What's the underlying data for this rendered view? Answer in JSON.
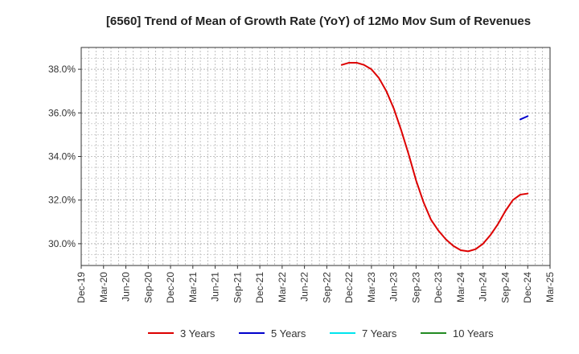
{
  "chart_data": {
    "type": "line",
    "title": "[6560]  Trend of Mean of Growth Rate (YoY) of 12Mo Mov Sum of Revenues",
    "xlabel": "",
    "ylabel": "",
    "ylim": [
      29.0,
      39.0
    ],
    "y_ticks": [
      30.0,
      32.0,
      34.0,
      36.0,
      38.0
    ],
    "y_tick_labels": [
      "30.0%",
      "32.0%",
      "34.0%",
      "36.0%",
      "38.0%"
    ],
    "x_range": [
      "Dec-19",
      "Mar-25"
    ],
    "x_tick_labels": [
      "Dec-19",
      "Mar-20",
      "Jun-20",
      "Sep-20",
      "Dec-20",
      "Mar-21",
      "Jun-21",
      "Sep-21",
      "Dec-21",
      "Mar-22",
      "Jun-22",
      "Sep-22",
      "Dec-22",
      "Mar-23",
      "Jun-23",
      "Sep-23",
      "Dec-23",
      "Mar-24",
      "Jun-24",
      "Sep-24",
      "Dec-24",
      "Mar-25"
    ],
    "grid": true,
    "legend_position": "bottom",
    "series": [
      {
        "name": "3 Years",
        "color": "#dd0000",
        "x": [
          "Nov-22",
          "Dec-22",
          "Jan-23",
          "Feb-23",
          "Mar-23",
          "Apr-23",
          "May-23",
          "Jun-23",
          "Jul-23",
          "Aug-23",
          "Sep-23",
          "Oct-23",
          "Nov-23",
          "Dec-23",
          "Jan-24",
          "Feb-24",
          "Mar-24",
          "Apr-24",
          "May-24",
          "Jun-24",
          "Jul-24",
          "Aug-24",
          "Sep-24",
          "Oct-24",
          "Nov-24",
          "Dec-24"
        ],
        "values": [
          38.2,
          38.3,
          38.3,
          38.2,
          38.0,
          37.6,
          37.0,
          36.2,
          35.2,
          34.1,
          32.9,
          31.9,
          31.1,
          30.6,
          30.2,
          29.9,
          29.7,
          29.65,
          29.75,
          30.0,
          30.4,
          30.9,
          31.5,
          32.0,
          32.25,
          32.3
        ]
      },
      {
        "name": "5 Years",
        "color": "#0000cc",
        "x": [
          "Nov-24",
          "Dec-24"
        ],
        "values": [
          35.7,
          35.85
        ]
      },
      {
        "name": "7 Years",
        "color": "#00e5ee",
        "x": [],
        "values": []
      },
      {
        "name": "10 Years",
        "color": "#228b22",
        "x": [],
        "values": []
      }
    ]
  }
}
